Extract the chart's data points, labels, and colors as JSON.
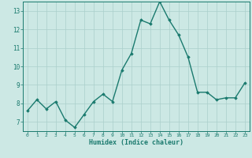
{
  "x": [
    0,
    1,
    2,
    3,
    4,
    5,
    6,
    7,
    8,
    9,
    10,
    11,
    12,
    13,
    14,
    15,
    16,
    17,
    18,
    19,
    20,
    21,
    22,
    23
  ],
  "y": [
    7.6,
    8.2,
    7.7,
    8.1,
    7.1,
    6.7,
    7.4,
    8.1,
    8.5,
    8.1,
    9.8,
    10.7,
    12.5,
    12.3,
    13.5,
    12.5,
    11.7,
    10.5,
    8.6,
    8.6,
    8.2,
    8.3,
    8.3,
    9.1
  ],
  "xlim": [
    -0.5,
    23.5
  ],
  "ylim": [
    6.5,
    13.5
  ],
  "yticks": [
    7,
    8,
    9,
    10,
    11,
    12,
    13
  ],
  "xticks": [
    0,
    1,
    2,
    3,
    4,
    5,
    6,
    7,
    8,
    9,
    10,
    11,
    12,
    13,
    14,
    15,
    16,
    17,
    18,
    19,
    20,
    21,
    22,
    23
  ],
  "xlabel": "Humidex (Indice chaleur)",
  "line_color": "#1a7a6e",
  "bg_color": "#cce8e4",
  "grid_color": "#aacfcb",
  "axis_color": "#1a7a6e",
  "tick_color": "#1a7a6e",
  "label_color": "#1a7a6e",
  "marker": "D",
  "marker_size": 1.8,
  "linewidth": 1.0
}
